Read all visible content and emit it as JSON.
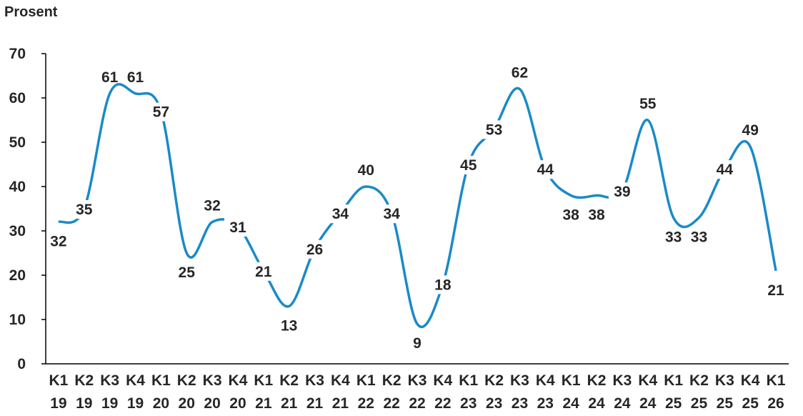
{
  "chart_data": {
    "type": "line",
    "ylabel": "Prosent",
    "ylim": [
      0,
      70
    ],
    "yticks": [
      0,
      10,
      20,
      30,
      40,
      50,
      60,
      70
    ],
    "categories": [
      [
        "K1",
        "19"
      ],
      [
        "K2",
        "19"
      ],
      [
        "K3",
        "19"
      ],
      [
        "K4",
        "19"
      ],
      [
        "K1",
        "20"
      ],
      [
        "K2",
        "20"
      ],
      [
        "K3",
        "20"
      ],
      [
        "K4",
        "20"
      ],
      [
        "K1",
        "21"
      ],
      [
        "K2",
        "21"
      ],
      [
        "K3",
        "21"
      ],
      [
        "K4",
        "21"
      ],
      [
        "K1",
        "22"
      ],
      [
        "K2",
        "22"
      ],
      [
        "K3",
        "22"
      ],
      [
        "K4",
        "22"
      ],
      [
        "K1",
        "23"
      ],
      [
        "K2",
        "23"
      ],
      [
        "K3",
        "23"
      ],
      [
        "K4",
        "23"
      ],
      [
        "K1",
        "24"
      ],
      [
        "K2",
        "24"
      ],
      [
        "K3",
        "24"
      ],
      [
        "K4",
        "24"
      ],
      [
        "K1",
        "25"
      ],
      [
        "K2",
        "25"
      ],
      [
        "K3",
        "25"
      ],
      [
        "K4",
        "25"
      ],
      [
        "K1",
        "26"
      ]
    ],
    "values": [
      32,
      35,
      61,
      61,
      57,
      25,
      32,
      31,
      21,
      13,
      26,
      34,
      40,
      34,
      9,
      18,
      45,
      53,
      62,
      44,
      38,
      38,
      39,
      55,
      33,
      33,
      44,
      49,
      21
    ],
    "line_color": "#1a8ac8",
    "grid": false,
    "legend": "none"
  }
}
